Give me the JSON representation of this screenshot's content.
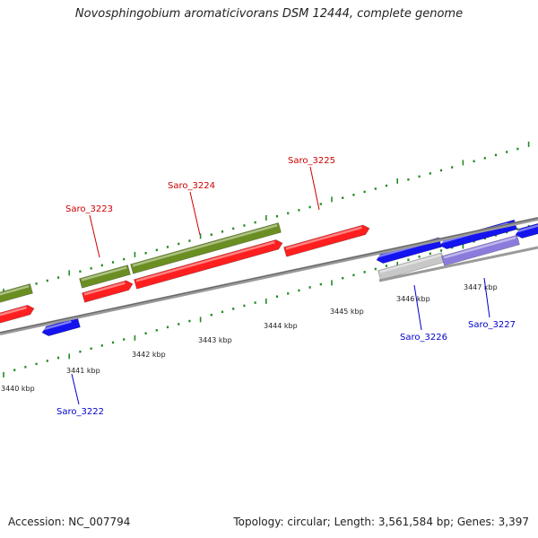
{
  "title": "Novosphingobium aromaticivorans DSM 12444, complete genome",
  "footer": {
    "accession": "Accession: NC_007794",
    "info": "Topology: circular; Length: 3,561,584 bp; Genes: 3,397"
  },
  "colors": {
    "green": "#6b8e23",
    "red": "#ff1f1f",
    "blue": "#1414f0",
    "gray_gene": "#c8c8c8",
    "purple_gene": "#8a7bdc",
    "backbone": "#888888",
    "tick": "#228b22",
    "label_red": "#cc0000",
    "label_blue": "#0000cc"
  },
  "scale_labels": [
    "3440 kbp",
    "3441 kbp",
    "3442 kbp",
    "3443 kbp",
    "3444 kbp",
    "3445 kbp",
    "3446 kbp",
    "3447 kbp"
  ],
  "gene_labels": [
    {
      "text": "Saro_3222",
      "color": "blue"
    },
    {
      "text": "Saro_3223",
      "color": "red"
    },
    {
      "text": "Saro_3224",
      "color": "red"
    },
    {
      "text": "Saro_3225",
      "color": "red"
    },
    {
      "text": "Saro_3226",
      "color": "blue"
    },
    {
      "text": "Saro_3227",
      "color": "blue"
    }
  ]
}
